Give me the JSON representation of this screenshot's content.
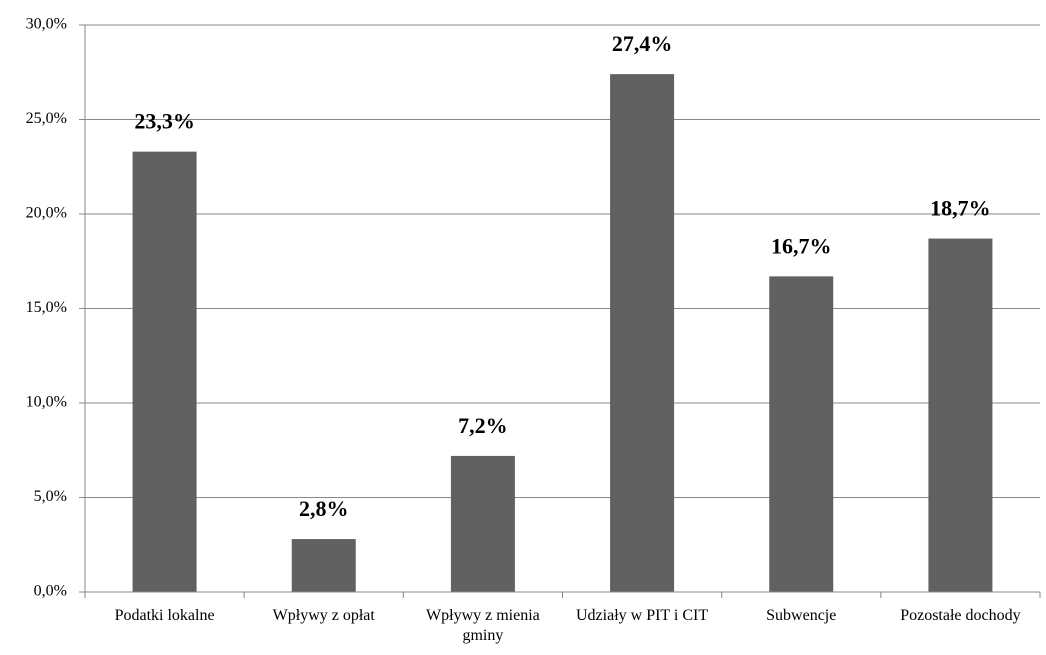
{
  "chart_data": {
    "type": "bar",
    "categories": [
      "Podatki lokalne",
      "Wpływy z opłat",
      "Wpływy z mienia gminy",
      "Udziały w PIT i CIT",
      "Subwencje",
      "Pozostałe dochody"
    ],
    "values": [
      23.3,
      2.8,
      7.2,
      27.4,
      16.7,
      18.7
    ],
    "value_labels": [
      "23,3%",
      "2,8%",
      "7,2%",
      "27,4%",
      "16,7%",
      "18,7%"
    ],
    "color": "#616161",
    "ylim": [
      0,
      30
    ],
    "yticks": [
      {
        "value": 0,
        "label": "0,0%"
      },
      {
        "value": 5,
        "label": "5,0%"
      },
      {
        "value": 10,
        "label": "10,0%"
      },
      {
        "value": 15,
        "label": "15,0%"
      },
      {
        "value": 20,
        "label": "20,0%"
      },
      {
        "value": 25,
        "label": "25,0%"
      },
      {
        "value": 30,
        "label": "30,0%"
      }
    ],
    "grid": true
  }
}
